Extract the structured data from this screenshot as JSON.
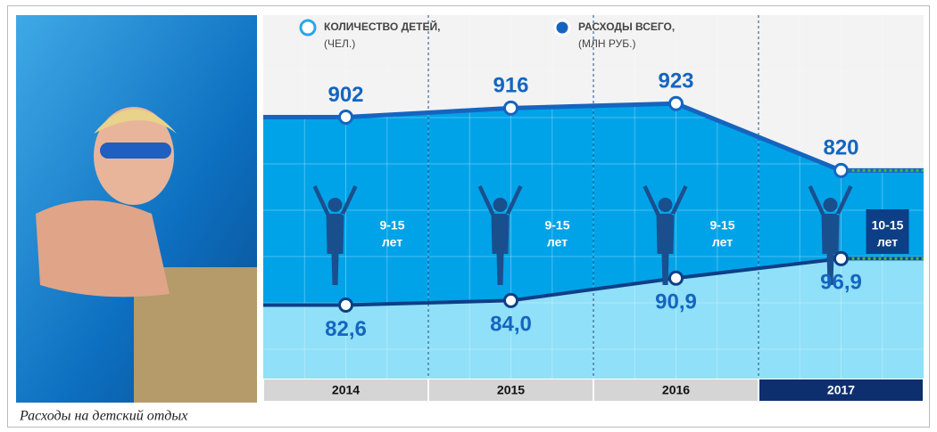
{
  "caption": "Расходы на детский отдых",
  "chart_data": {
    "type": "area",
    "categories": [
      "2014",
      "2015",
      "2016",
      "2017"
    ],
    "age_groups": [
      [
        "9-15",
        "лет"
      ],
      [
        "9-15",
        "лет"
      ],
      [
        "9-15",
        "лет"
      ],
      [
        "10-15",
        "лет"
      ]
    ],
    "series": [
      {
        "name": "КОЛИЧЕСТВО ДЕТЕЙ,",
        "unit": "(ЧЕЛ.)",
        "color": "#00a3e8",
        "values": [
          902,
          916,
          923,
          820
        ]
      },
      {
        "name": "РАСХОДЫ ВСЕГО,",
        "unit": "(МЛН РУБ.)",
        "color": "#8fe0f8",
        "axis": "y2",
        "values": [
          82.6,
          84.0,
          90.9,
          96.9
        ],
        "value_labels": [
          "82,6",
          "84,0",
          "90,9",
          "96,9"
        ]
      }
    ],
    "ylim": [
      500,
      1000
    ],
    "y2lim": [
      60,
      160
    ]
  }
}
